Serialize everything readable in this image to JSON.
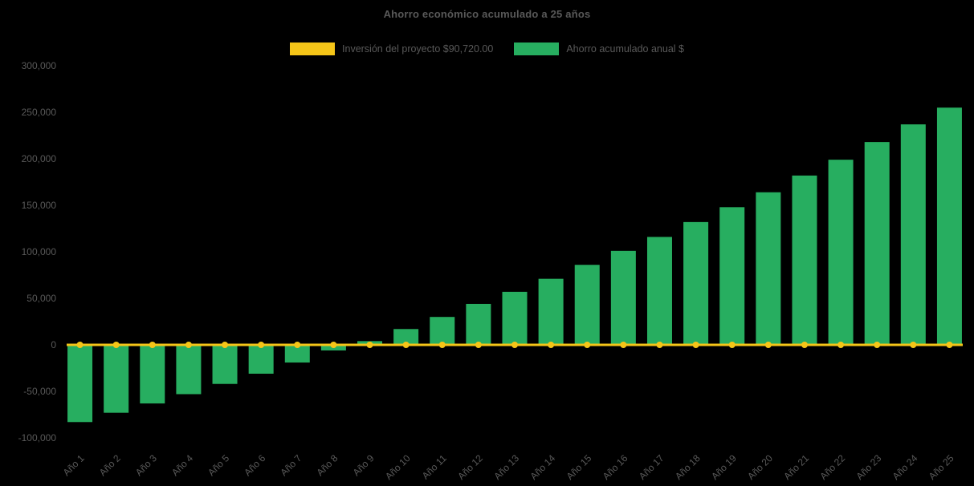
{
  "chart_data": {
    "type": "bar",
    "title": "Ahorro económico acumulado a 25 años",
    "categories": [
      "Año 1",
      "Año 2",
      "Año 3",
      "Año 4",
      "Año 5",
      "Año 6",
      "Año 7",
      "Año 8",
      "Año 9",
      "Año 10",
      "Año 11",
      "Año 12",
      "Año 13",
      "Año 14",
      "Año 15",
      "Año 16",
      "Año 17",
      "Año 18",
      "Año 19",
      "Año 20",
      "Año 21",
      "Año 22",
      "Año 23",
      "Año 24",
      "Año 25"
    ],
    "series": [
      {
        "name": "Inversión del proyecto $90,720.00",
        "type": "line",
        "color": "#F5C518",
        "line_value": 0,
        "marker": "circle"
      },
      {
        "name": "Ahorro acumulado anual $",
        "type": "bar",
        "color": "#27AE60",
        "values": [
          -83000,
          -73000,
          -63000,
          -53000,
          -42000,
          -31000,
          -19000,
          -6000,
          4000,
          17000,
          30000,
          44000,
          57000,
          71000,
          86000,
          101000,
          116000,
          132000,
          148000,
          164000,
          182000,
          199000,
          218000,
          237000,
          255000
        ]
      }
    ],
    "yticks": [
      {
        "value": 300000,
        "label": "300,000"
      },
      {
        "value": 250000,
        "label": "250,000"
      },
      {
        "value": 200000,
        "label": "200,000"
      },
      {
        "value": 150000,
        "label": "150,000"
      },
      {
        "value": 100000,
        "label": "100,000"
      },
      {
        "value": 50000,
        "label": "50,000"
      },
      {
        "value": 0,
        "label": "0"
      },
      {
        "value": -50000,
        "label": "-50,000"
      },
      {
        "value": -100000,
        "label": "-100,000"
      }
    ],
    "ylim": [
      -100000,
      300000
    ],
    "xlabel": "",
    "ylabel": "",
    "grid": false,
    "legend_position": "top",
    "background": "#000000",
    "text_color": "#595959"
  }
}
